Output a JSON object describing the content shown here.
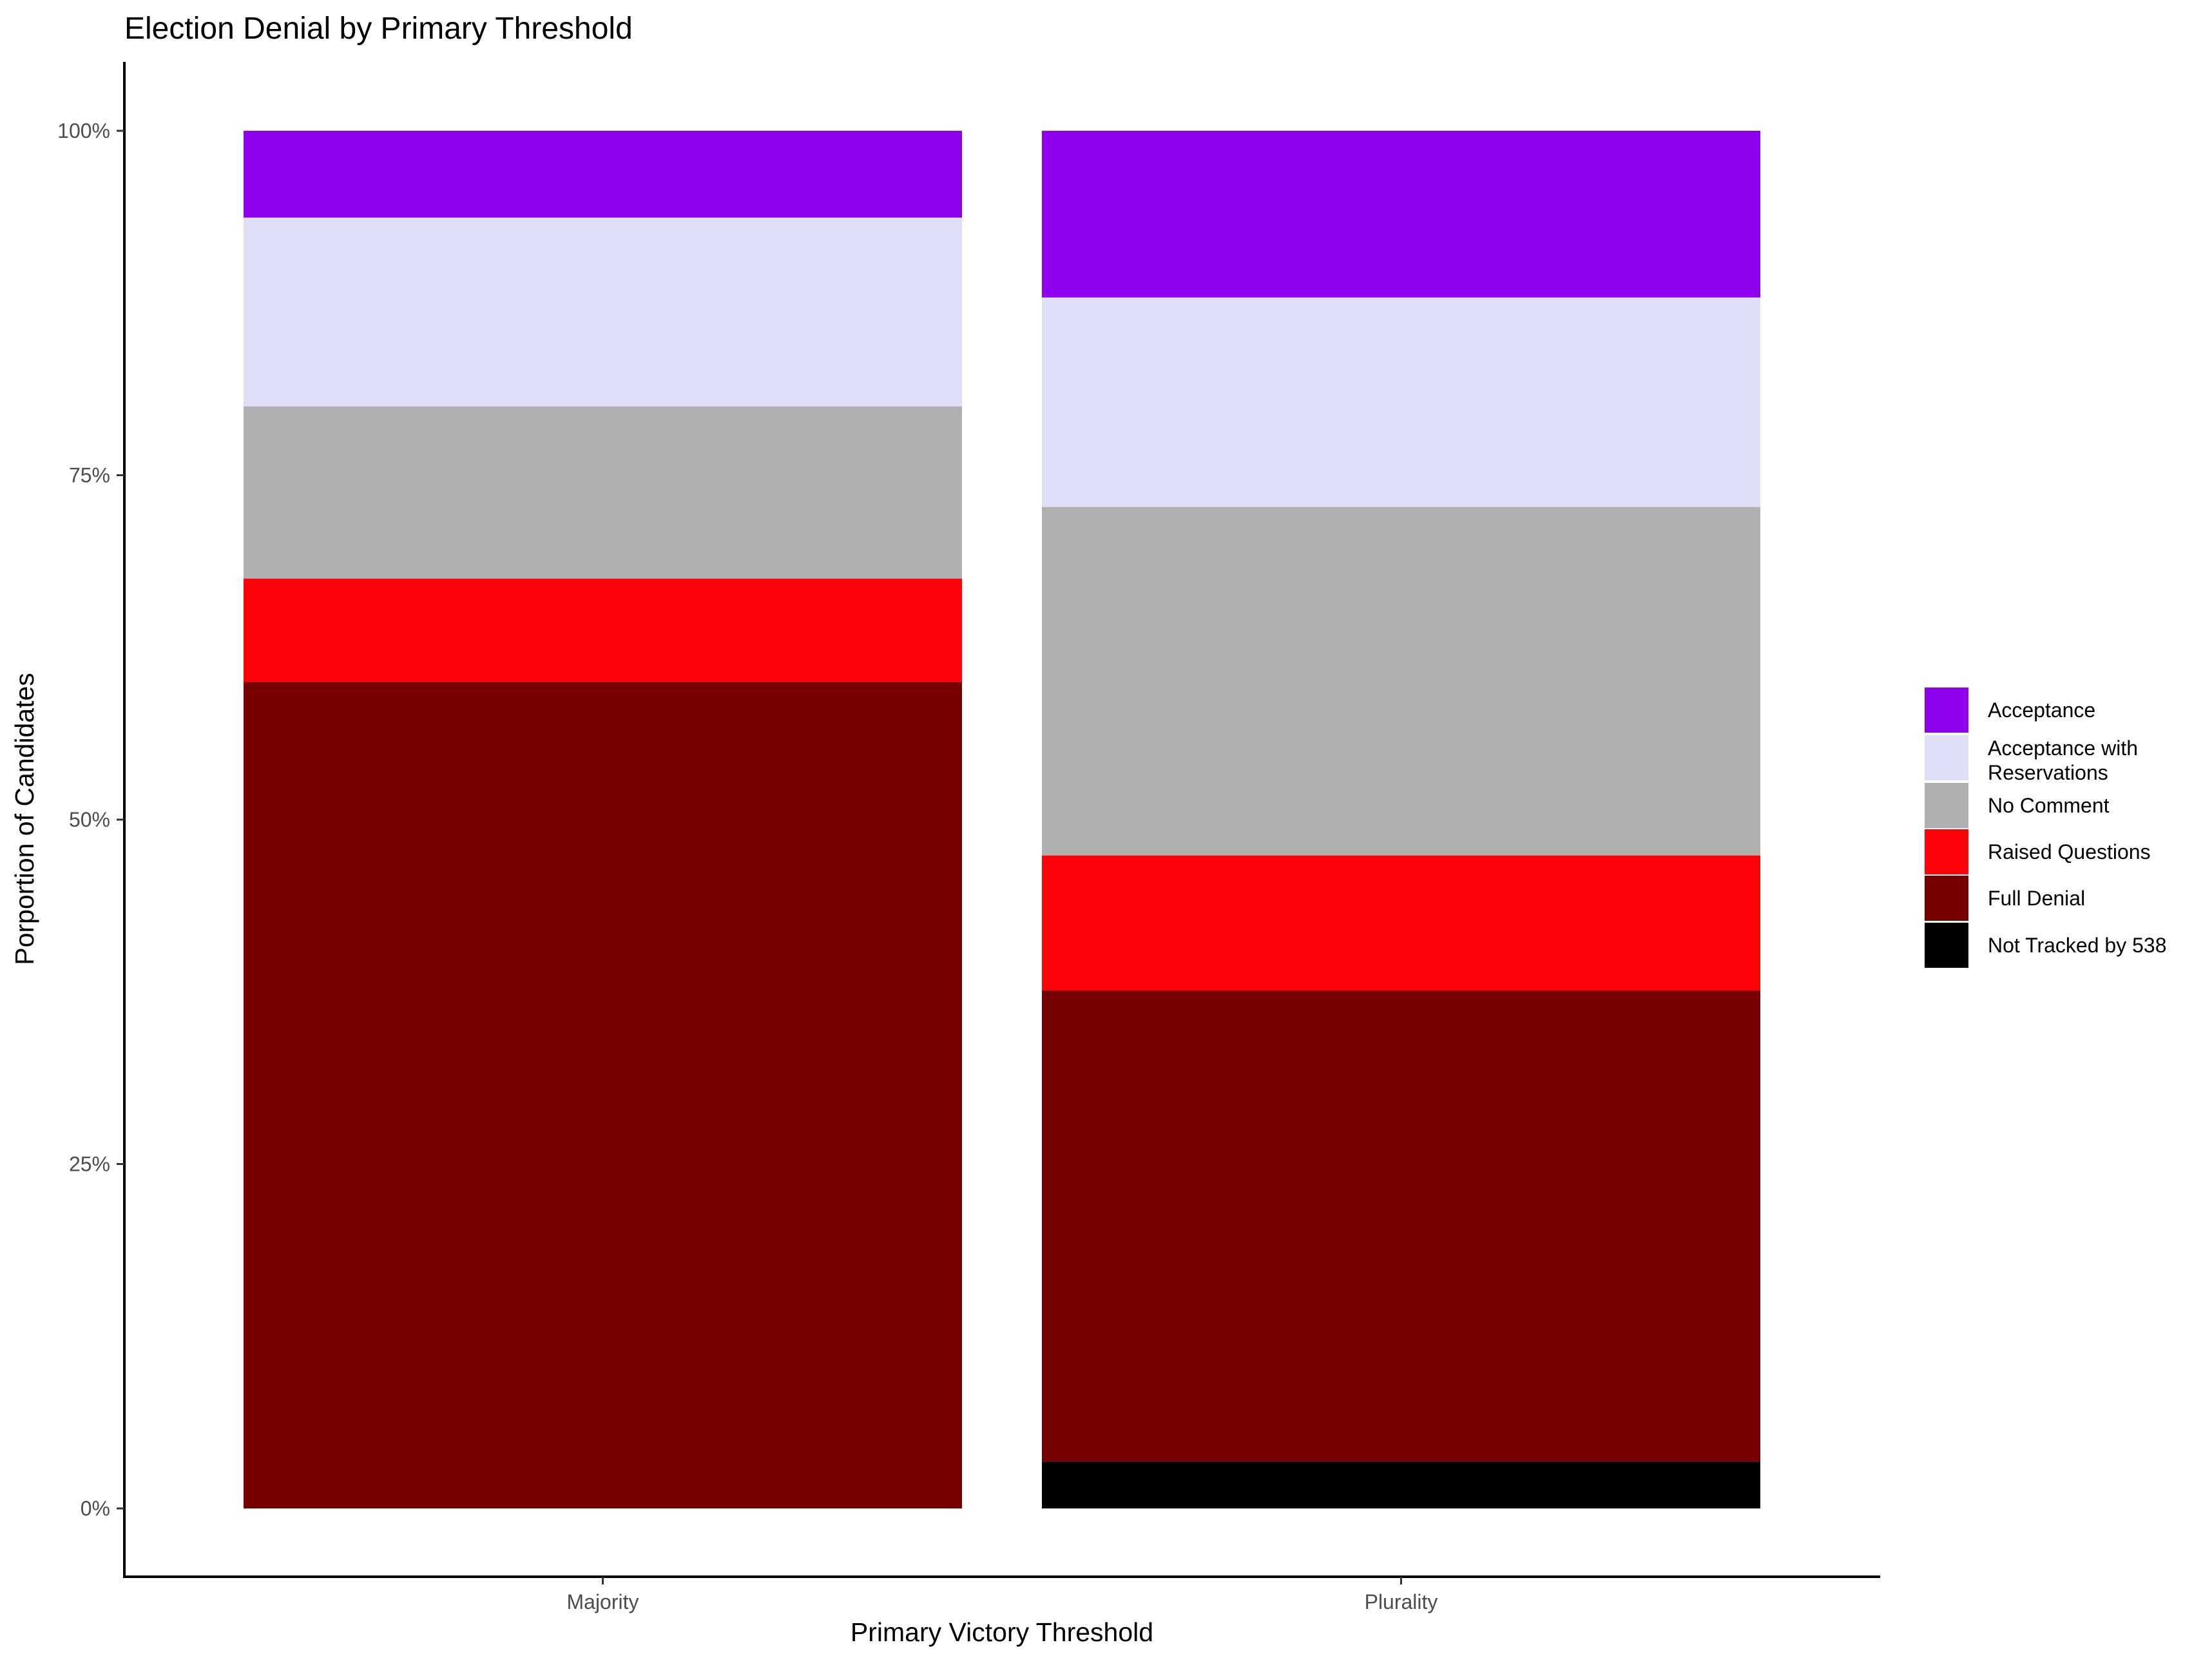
{
  "chart_data": {
    "type": "bar",
    "stacked": true,
    "title": "Election Denial by Primary Threshold",
    "xlabel": "Primary Victory Threshold",
    "ylabel": "Porportion of Candidates",
    "categories": [
      "Majority",
      "Plurality"
    ],
    "ylim": [
      0,
      1
    ],
    "y_ticks": [
      0,
      0.25,
      0.5,
      0.75,
      1.0
    ],
    "y_tick_labels": [
      "0%",
      "25%",
      "50%",
      "75%",
      "100%"
    ],
    "grid": false,
    "legend_position": "right",
    "series": [
      {
        "name": "Acceptance",
        "color": "#8f00ed",
        "values": [
          0.063,
          0.121
        ]
      },
      {
        "name": "Acceptance with Reservations",
        "label_lines": [
          "Acceptance with",
          "Reservations"
        ],
        "color": "#dfdff8",
        "values": [
          0.137,
          0.152
        ]
      },
      {
        "name": "No Comment",
        "color": "#b0b0b0",
        "values": [
          0.125,
          0.253
        ]
      },
      {
        "name": "Raised Questions",
        "color": "#ff030a",
        "values": [
          0.075,
          0.098
        ]
      },
      {
        "name": "Full Denial",
        "color": "#760000",
        "values": [
          0.6,
          0.342
        ]
      },
      {
        "name": "Not Tracked by 538",
        "color": "#000000",
        "values": [
          0.0,
          0.034
        ]
      }
    ]
  }
}
